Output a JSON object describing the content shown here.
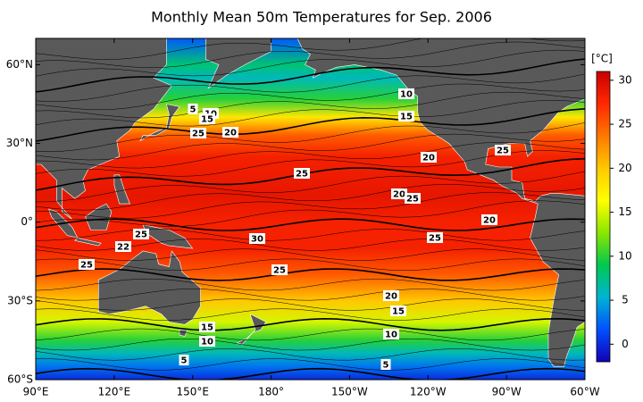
{
  "map": {
    "title": "Monthly Mean 50m Temperatures for Sep. 2006",
    "lonlim": [
      90,
      300
    ],
    "latlim": [
      -60,
      70
    ],
    "lon_ticks": [
      {
        "value": 90,
        "label": "90°E"
      },
      {
        "value": 120,
        "label": "120°E"
      },
      {
        "value": 150,
        "label": "150°E"
      },
      {
        "value": 180,
        "label": "180°"
      },
      {
        "value": 210,
        "label": "150°W"
      },
      {
        "value": 240,
        "label": "120°W"
      },
      {
        "value": 270,
        "label": "90°W"
      },
      {
        "value": 300,
        "label": "60°W"
      }
    ],
    "lat_ticks": [
      {
        "value": 60,
        "label": "60°N"
      },
      {
        "value": 30,
        "label": "30°N"
      },
      {
        "value": 0,
        "label": "0°"
      },
      {
        "value": -30,
        "label": "30°S"
      },
      {
        "value": -60,
        "label": "60°S"
      }
    ],
    "land_color": "#595959",
    "colorbar": {
      "unit": "[°C]",
      "range": [
        -2,
        31
      ],
      "ticks": [
        0,
        5,
        10,
        15,
        20,
        25,
        30
      ],
      "colors": [
        "#1400b4",
        "#0050ff",
        "#00b4d2",
        "#00c850",
        "#8ce600",
        "#ffff00",
        "#ffc800",
        "#ff7800",
        "#ff2800",
        "#c80000"
      ]
    },
    "contour_labels": [
      "10",
      "5",
      "10",
      "15",
      "15",
      "25",
      "20",
      "25",
      "20",
      "25",
      "20",
      "25",
      "20",
      "25",
      "30",
      "25",
      "22",
      "25",
      "25",
      "20",
      "15",
      "15",
      "10",
      "10",
      "5",
      "5"
    ]
  }
}
